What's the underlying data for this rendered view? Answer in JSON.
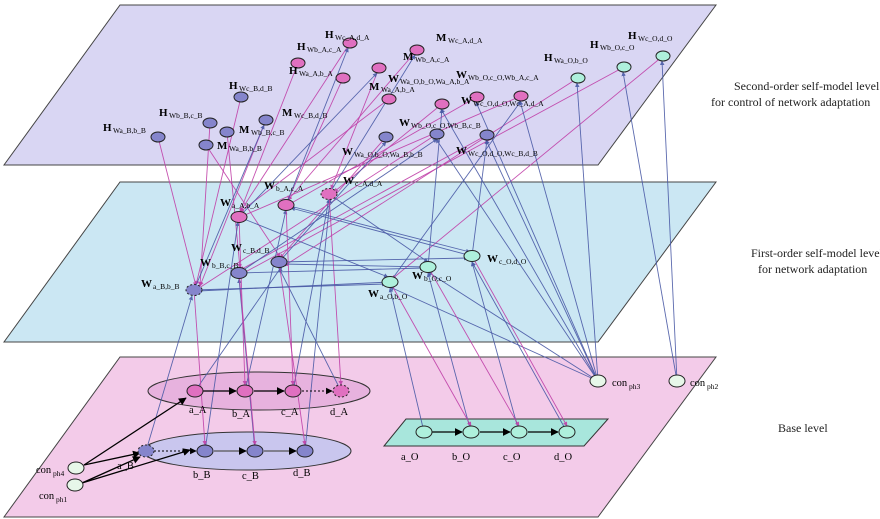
{
  "levels": {
    "second_order_line1": "Second-order self-model level",
    "second_order_line2": "for control of network adaptation",
    "first_order_line1": "First-order self-model level",
    "first_order_line2": "for network adaptation",
    "base": "Base level"
  },
  "colors": {
    "second_plane": "#d9d6f3",
    "first_plane": "#cbe7f3",
    "base_plane": "#f3cbe9",
    "pink_node": "#e070c0",
    "purple_node": "#8585cc",
    "green_node": "#aef0dc",
    "pink_edge": "#c040a8",
    "blue_edge": "#4a5aa6"
  },
  "second_order_nodes": [
    {
      "id": "H_c_A_d_A",
      "main": "H",
      "sub": "Wc_A,d_A"
    },
    {
      "id": "M_c_A_d_A",
      "main": "M",
      "sub": "Wc_A,d_A"
    },
    {
      "id": "H_b_A_c_A",
      "main": "H",
      "sub": "Wb_A,c_A"
    },
    {
      "id": "M_b_A_c_A",
      "main": "M",
      "sub": "Wb_A,c_A"
    },
    {
      "id": "H_a_A_b_A",
      "main": "H",
      "sub": "Wa_A,b_A"
    },
    {
      "id": "M_a_A_b_A",
      "main": "M",
      "sub": "Wa_A,b_A"
    },
    {
      "id": "H_c_B_d_B",
      "main": "H",
      "sub": "Wc_B,d_B"
    },
    {
      "id": "M_c_B_d_B",
      "main": "M",
      "sub": "Wc_B,d_B"
    },
    {
      "id": "H_b_B_c_B",
      "main": "H",
      "sub": "Wb_B,c_B"
    },
    {
      "id": "M_b_B_c_B",
      "main": "M",
      "sub": "Wb_B,c_B"
    },
    {
      "id": "H_a_B_b_B",
      "main": "H",
      "sub": "Wa_B,b_B"
    },
    {
      "id": "M_a_B_b_B",
      "main": "M",
      "sub": "Wa_B,b_B"
    },
    {
      "id": "H_a_O_b_O",
      "main": "H",
      "sub": "Wa_O,b_O"
    },
    {
      "id": "H_b_O_c_O",
      "main": "H",
      "sub": "Wb_O,c_O"
    },
    {
      "id": "H_c_O_d_O",
      "main": "H",
      "sub": "Wc_O,d_O"
    },
    {
      "id": "W_ab_O_ab_A",
      "main": "W",
      "sub": "Wa_O,b_O,Wa_A,b_A"
    },
    {
      "id": "W_bc_O_bc_A",
      "main": "W",
      "sub": "Wb_O,c_O,Wb_A,c_A"
    },
    {
      "id": "W_cd_O_cd_A",
      "main": "W",
      "sub": "Wc_O,d_O,Wc_A,d_A"
    },
    {
      "id": "W_bc_O_bc_B",
      "main": "W",
      "sub": "Wb_O,c_O,Wb_B,c_B"
    },
    {
      "id": "W_ab_O_ab_B",
      "main": "W",
      "sub": "Wa_O,b_O,Wa_B,b_B"
    },
    {
      "id": "W_cd_O_cd_B",
      "main": "W",
      "sub": "Wc_O,d_O,Wc_B,d_B"
    }
  ],
  "first_order_nodes": [
    {
      "id": "W_b_A_c_A",
      "main": "W",
      "sub": "b_A,c_A"
    },
    {
      "id": "W_c_A_d_A",
      "main": "W",
      "sub": "c_A,d_A"
    },
    {
      "id": "W_a_A_b_A",
      "main": "W",
      "sub": "a_A,b_A"
    },
    {
      "id": "W_c_B_d_B",
      "main": "W",
      "sub": "c_B,d_B"
    },
    {
      "id": "W_b_B_c_B",
      "main": "W",
      "sub": "b_B,c_B"
    },
    {
      "id": "W_a_B_b_B",
      "main": "W",
      "sub": "a_B,b_B"
    },
    {
      "id": "W_c_O_d_O",
      "main": "W",
      "sub": "c_O,d_O"
    },
    {
      "id": "W_b_O_c_O",
      "main": "W",
      "sub": "b_O,c_O"
    },
    {
      "id": "W_a_O_b_O",
      "main": "W",
      "sub": "a_O,b_O"
    }
  ],
  "base_nodes": [
    {
      "id": "a_A",
      "label": "a_A"
    },
    {
      "id": "b_A",
      "label": "b_A"
    },
    {
      "id": "c_A",
      "label": "c_A"
    },
    {
      "id": "d_A",
      "label": "d_A"
    },
    {
      "id": "a_B",
      "label": "a_B"
    },
    {
      "id": "b_B",
      "label": "b_B"
    },
    {
      "id": "c_B",
      "label": "c_B"
    },
    {
      "id": "d_B",
      "label": "d_B"
    },
    {
      "id": "a_O",
      "label": "a_O"
    },
    {
      "id": "b_O",
      "label": "b_O"
    },
    {
      "id": "c_O",
      "label": "c_O"
    },
    {
      "id": "d_O",
      "label": "d_O"
    }
  ],
  "context_nodes": [
    {
      "id": "con_ph4",
      "main": "con",
      "sub": "ph4"
    },
    {
      "id": "con_ph1",
      "main": "con",
      "sub": "ph1"
    },
    {
      "id": "con_ph3",
      "main": "con",
      "sub": "ph3"
    },
    {
      "id": "con_ph2",
      "main": "con",
      "sub": "ph2"
    }
  ]
}
